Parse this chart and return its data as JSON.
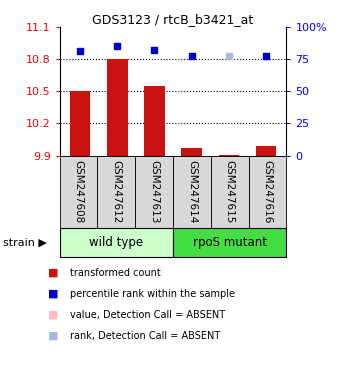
{
  "title": "GDS3123 / rtcB_b3421_at",
  "samples": [
    "GSM247608",
    "GSM247612",
    "GSM247613",
    "GSM247614",
    "GSM247615",
    "GSM247616"
  ],
  "groups": [
    {
      "label": "wild type",
      "indices": [
        0,
        1,
        2
      ],
      "color": "#ccffcc"
    },
    {
      "label": "rpoS mutant",
      "indices": [
        3,
        4,
        5
      ],
      "color": "#44dd44"
    }
  ],
  "bar_values": [
    10.5,
    10.8,
    10.55,
    9.97,
    9.905,
    9.99
  ],
  "bar_bottom": 9.9,
  "bar_color": "#cc1111",
  "scatter_values": [
    10.875,
    10.925,
    10.88,
    10.83,
    10.825,
    10.83
  ],
  "scatter_colors": [
    "#0000cc",
    "#0000cc",
    "#0000cc",
    "#0000cc",
    "#aabbdd",
    "#0000cc"
  ],
  "scatter_sizes": [
    25,
    25,
    25,
    25,
    20,
    25
  ],
  "ylim_left": [
    9.9,
    11.1
  ],
  "ylim_right": [
    0,
    100
  ],
  "yticks_left": [
    9.9,
    10.2,
    10.5,
    10.8,
    11.1
  ],
  "ytick_labels_left": [
    "9.9",
    "10.2",
    "10.5",
    "10.8",
    "11.1"
  ],
  "yticks_right": [
    0,
    25,
    50,
    75,
    100
  ],
  "ytick_labels_right": [
    "0",
    "25",
    "50",
    "75",
    "100%"
  ],
  "grid_values": [
    10.2,
    10.5,
    10.8
  ],
  "legend_items": [
    {
      "label": "transformed count",
      "color": "#cc1111"
    },
    {
      "label": "percentile rank within the sample",
      "color": "#0000cc"
    },
    {
      "label": "value, Detection Call = ABSENT",
      "color": "#ffbbbb"
    },
    {
      "label": "rank, Detection Call = ABSENT",
      "color": "#aabbdd"
    }
  ],
  "figsize": [
    3.41,
    3.84
  ],
  "dpi": 100
}
